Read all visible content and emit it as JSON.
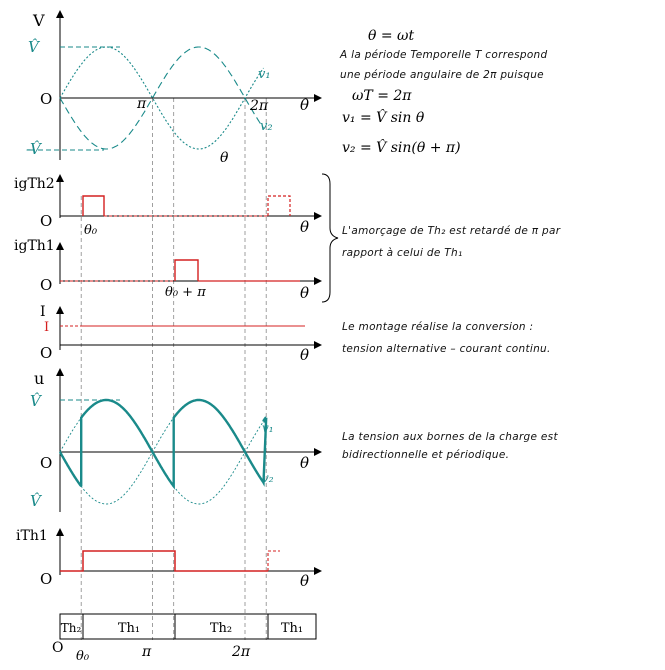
{
  "colors": {
    "wave": "#1a8a8a",
    "gate": "#d42020",
    "axis": "#000000",
    "guide": "#888888"
  },
  "top": {
    "y_axis": "V",
    "vhat": "V̂",
    "neg_vhat": "-V̂",
    "origin": "O",
    "pi": "π",
    "two_pi": "2π",
    "v1": "v₁",
    "v2": "v₂",
    "theta": "θ"
  },
  "equations": {
    "e1": "θ = ωt",
    "e2": "ωT = 2π",
    "e3": "v₁ = V̂ sin θ",
    "e4": "v₂ = V̂ sin(θ + π)"
  },
  "notes": {
    "period_l1": "A la période Temporelle T correspond",
    "period_l2": "une période angulaire de 2π puisque",
    "delay_l1": "L'amorçage de Th₂ est retardé de π par",
    "delay_l2": "rapport à celui de Th₁",
    "conv_l1": "Le montage réalise la conversion :",
    "conv_l2": "tension alternative – courant continu.",
    "load_l1": "La tension aux bornes de la charge est",
    "load_l2": "bidirectionnelle et périodique."
  },
  "gate2": {
    "label": "igTh2",
    "origin": "O",
    "theta": "θ",
    "theta0": "θ₀"
  },
  "gate1": {
    "label": "igTh1",
    "origin": "O",
    "theta": "θ",
    "theta0_pi": "θ₀ + π"
  },
  "current": {
    "label": "I",
    "level": "I",
    "origin": "O",
    "theta": "θ"
  },
  "load": {
    "label": "u",
    "vhat": "V̂",
    "neg_vhat": "V̂",
    "origin": "O",
    "v1": "v₁",
    "v2": "v₂",
    "theta": "θ"
  },
  "ith1": {
    "label": "iTh1",
    "origin": "O",
    "theta": "θ"
  },
  "conduction": {
    "segments": [
      "Th₂",
      "Th₁",
      "Th₂",
      "Th₁"
    ],
    "origin": "O",
    "theta0": "θ₀",
    "pi": "π",
    "two_pi": "2π"
  },
  "params": {
    "firing_angle_rad": 0.72,
    "periods_shown": 2.2
  }
}
